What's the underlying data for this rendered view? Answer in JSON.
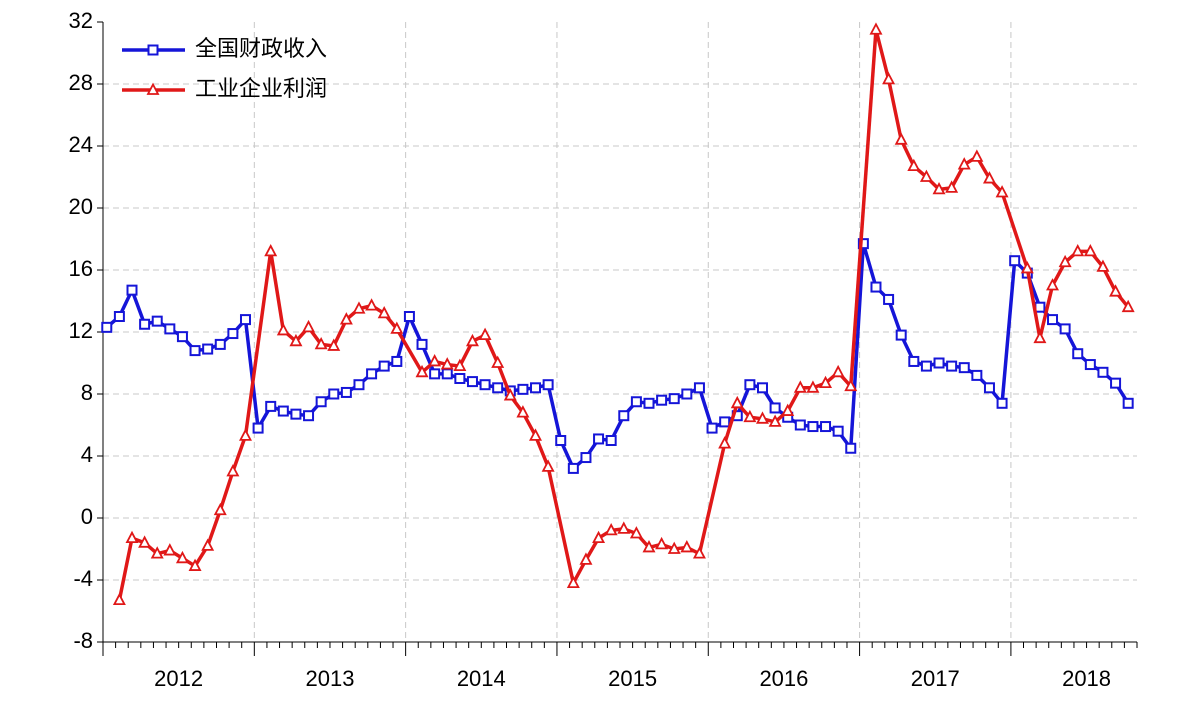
{
  "chart_data": {
    "type": "line",
    "categories": [
      null,
      null,
      null,
      null,
      null,
      null,
      "2012",
      null,
      null,
      null,
      null,
      null,
      null,
      null,
      null,
      null,
      null,
      null,
      "2013",
      null,
      null,
      null,
      null,
      null,
      null,
      null,
      null,
      null,
      null,
      null,
      "2014",
      null,
      null,
      null,
      null,
      null,
      null,
      null,
      null,
      null,
      null,
      null,
      "2015",
      null,
      null,
      null,
      null,
      null,
      null,
      null,
      null,
      null,
      null,
      null,
      "2016",
      null,
      null,
      null,
      null,
      null,
      null,
      null,
      null,
      null,
      null,
      null,
      "2017",
      null,
      null,
      null,
      null,
      null,
      null,
      null,
      null,
      null,
      null,
      null,
      "2018",
      null,
      null,
      null
    ],
    "series": [
      {
        "name": "全国财政收入",
        "color": "#1515d8",
        "marker": "square",
        "values": [
          12.3,
          13.0,
          14.7,
          12.5,
          12.7,
          12.2,
          11.7,
          10.8,
          10.9,
          11.2,
          11.9,
          12.8,
          5.8,
          7.2,
          6.9,
          6.7,
          6.6,
          7.5,
          8.0,
          8.1,
          8.6,
          9.3,
          9.8,
          10.1,
          13.0,
          11.2,
          9.3,
          9.3,
          9.0,
          8.8,
          8.6,
          8.4,
          8.2,
          8.3,
          8.4,
          8.6,
          5.0,
          3.2,
          3.9,
          5.1,
          5.0,
          6.6,
          7.5,
          7.4,
          7.6,
          7.7,
          8.0,
          8.4,
          5.8,
          6.2,
          6.6,
          8.6,
          8.4,
          7.1,
          6.5,
          6.0,
          5.9,
          5.9,
          5.6,
          4.5,
          17.7,
          14.9,
          14.1,
          11.8,
          10.1,
          9.8,
          10.0,
          9.8,
          9.7,
          9.2,
          8.4,
          7.4,
          16.6,
          15.8,
          13.6,
          12.8,
          12.2,
          10.6,
          9.9,
          9.4,
          8.7,
          7.4
        ]
      },
      {
        "name": "工业企业利润",
        "color": "#e01818",
        "marker": "triangle",
        "values": [
          null,
          -5.3,
          -1.3,
          -1.6,
          -2.3,
          -2.1,
          -2.6,
          -3.1,
          -1.8,
          0.5,
          3.0,
          5.3,
          null,
          17.2,
          12.1,
          11.4,
          12.3,
          11.2,
          11.1,
          12.8,
          13.5,
          13.7,
          13.2,
          12.2,
          null,
          9.4,
          10.1,
          9.9,
          9.8,
          11.4,
          11.8,
          10.0,
          7.9,
          6.8,
          5.3,
          3.3,
          null,
          -4.2,
          -2.7,
          -1.3,
          -0.8,
          -0.7,
          -1.0,
          -1.9,
          -1.7,
          -2.0,
          -1.9,
          -2.3,
          null,
          4.8,
          7.4,
          6.5,
          6.4,
          6.2,
          6.9,
          8.4,
          8.4,
          8.7,
          9.4,
          8.5,
          null,
          31.5,
          28.3,
          24.4,
          22.7,
          22.0,
          21.2,
          21.3,
          22.8,
          23.3,
          21.9,
          21.0,
          null,
          16.1,
          11.6,
          15.0,
          16.5,
          17.2,
          17.2,
          16.2,
          14.6,
          13.6
        ]
      }
    ],
    "ylim": [
      -8,
      32
    ],
    "yticks": [
      -8,
      -4,
      0,
      4,
      8,
      12,
      16,
      20,
      24,
      28,
      32
    ],
    "grid": true,
    "legend": "upper-left"
  }
}
